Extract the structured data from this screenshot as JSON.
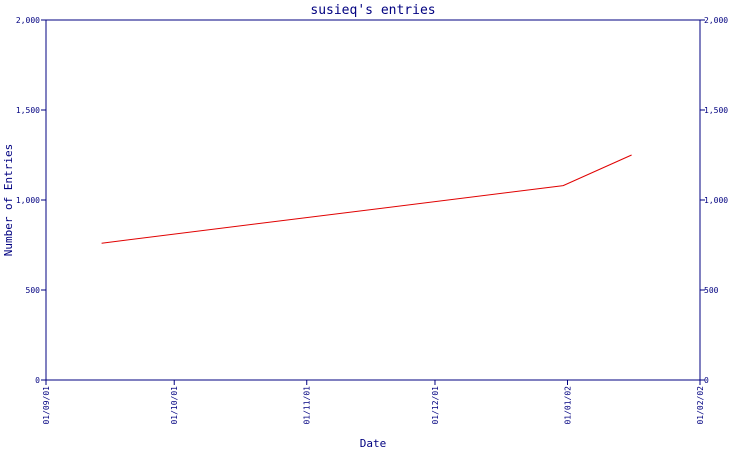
{
  "chart_data": {
    "type": "line",
    "title": "susieq's entries",
    "xlabel": "Date",
    "ylabel": "Number of Entries",
    "ylim": [
      0,
      2000
    ],
    "xlim": [
      "2001-09-01",
      "2002-02-01"
    ],
    "y_ticks": [
      {
        "value": 0,
        "label": "0"
      },
      {
        "value": 500,
        "label": "500"
      },
      {
        "value": 1000,
        "label": "1,000"
      },
      {
        "value": 1500,
        "label": "1,500"
      },
      {
        "value": 2000,
        "label": "2,000"
      }
    ],
    "x_ticks": [
      {
        "date": "2001-09-01",
        "label": "01/09/01"
      },
      {
        "date": "2001-10-01",
        "label": "01/10/01"
      },
      {
        "date": "2001-11-01",
        "label": "01/11/01"
      },
      {
        "date": "2001-12-01",
        "label": "01/12/01"
      },
      {
        "date": "2002-01-01",
        "label": "01/01/02"
      },
      {
        "date": "2002-02-01",
        "label": "01/02/02"
      }
    ],
    "grid": false,
    "series": [
      {
        "color": "#e00000",
        "points": [
          {
            "x": "2001-09-14",
            "y": 760
          },
          {
            "x": "2001-12-31",
            "y": 1080
          },
          {
            "x": "2002-01-16",
            "y": 1250
          }
        ]
      }
    ],
    "colors": {
      "axis": "#000080",
      "text": "#000080",
      "line": "#e00000",
      "background": "#ffffff"
    }
  }
}
